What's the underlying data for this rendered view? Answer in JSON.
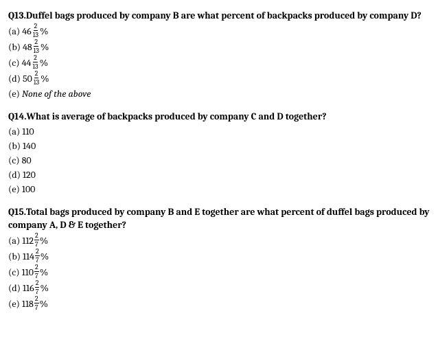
{
  "questions": [
    {
      "number": "Q13.",
      "text": "Duffel bags produced by company B are what percent of backpacks produced by company D?",
      "options": [
        {
          "label": "(a)",
          "whole": "46",
          "num": "2",
          "den": "13",
          "suffix": "%",
          "italic": false,
          "plain": null
        },
        {
          "label": "(b)",
          "whole": "48",
          "num": "2",
          "den": "13",
          "suffix": "%",
          "italic": false,
          "plain": null
        },
        {
          "label": "(c)",
          "whole": "44",
          "num": "2",
          "den": "13",
          "suffix": "%",
          "italic": false,
          "plain": null
        },
        {
          "label": "(d)",
          "whole": "50",
          "num": "2",
          "den": "13",
          "suffix": "%",
          "italic": false,
          "plain": null
        },
        {
          "label": "(e)",
          "whole": null,
          "num": null,
          "den": null,
          "suffix": null,
          "italic": true,
          "plain": "None of the above"
        }
      ]
    },
    {
      "number": "Q14.",
      "text": "What is average of backpacks produced by company C and D together?",
      "options": [
        {
          "label": "(a)",
          "whole": null,
          "num": null,
          "den": null,
          "suffix": null,
          "italic": false,
          "plain": "110"
        },
        {
          "label": "(b)",
          "whole": null,
          "num": null,
          "den": null,
          "suffix": null,
          "italic": false,
          "plain": "140"
        },
        {
          "label": "(c)",
          "whole": null,
          "num": null,
          "den": null,
          "suffix": null,
          "italic": false,
          "plain": "80"
        },
        {
          "label": "(d)",
          "whole": null,
          "num": null,
          "den": null,
          "suffix": null,
          "italic": false,
          "plain": "120"
        },
        {
          "label": "(e)",
          "whole": null,
          "num": null,
          "den": null,
          "suffix": null,
          "italic": false,
          "plain": "100"
        }
      ]
    },
    {
      "number": "Q15.",
      "text": "Total bags produced by company B and E together are what percent of duffel bags produced by company A, D & E together?",
      "options": [
        {
          "label": "(a)",
          "whole": "112",
          "num": "2",
          "den": "7",
          "suffix": "%",
          "italic": false,
          "plain": null
        },
        {
          "label": "(b)",
          "whole": "114",
          "num": "2",
          "den": "7",
          "suffix": "%",
          "italic": false,
          "plain": null
        },
        {
          "label": "(c)",
          "whole": "110",
          "num": "2",
          "den": "7",
          "suffix": "%",
          "italic": false,
          "plain": null
        },
        {
          "label": "(d)",
          "whole": "116",
          "num": "2",
          "den": "7",
          "suffix": "%",
          "italic": false,
          "plain": null
        },
        {
          "label": "(e)",
          "whole": "118",
          "num": "2",
          "den": "7",
          "suffix": "%",
          "italic": false,
          "plain": null
        }
      ]
    }
  ]
}
